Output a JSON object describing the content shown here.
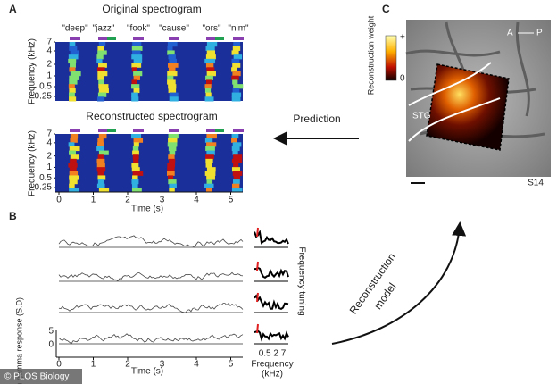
{
  "panel_a": {
    "label": "A",
    "original_title": "Original spectrogram",
    "reconstructed_title": "Reconstructed spectrogram",
    "words": [
      "\"deep\"",
      "\"jazz\"",
      "\"fook\"",
      "\"cause\"",
      "\"ors\"",
      "\"nim\""
    ],
    "y_axis_label": "Frequency (kHz)",
    "y_ticks": [
      "7",
      "4",
      "2",
      "1",
      "0.5",
      "0.25"
    ],
    "x_ticks": [
      "0",
      "1",
      "2",
      "3",
      "4",
      "5"
    ],
    "x_axis_label": "Time (s)"
  },
  "prediction": "Prediction",
  "panel_b": {
    "label": "B",
    "y_axis_label": "High gamma response (S.D)",
    "y_ticks": [
      "5",
      "0"
    ],
    "x_ticks": [
      "0",
      "1",
      "2",
      "3",
      "4",
      "5"
    ],
    "x_axis_label": "Time (s)",
    "tuning_label": "Frequency tuning",
    "tuning_ticks": "0.5 2 7",
    "tuning_axis_label": "Frequency",
    "tuning_axis_unit": "(kHz)"
  },
  "panel_c": {
    "label": "C",
    "colorbar_label": "Reconstruction weight",
    "colorbar_max": "+",
    "colorbar_min": "0",
    "orientation_left": "A",
    "orientation_right": "P",
    "region": "STG",
    "subject": "S14"
  },
  "model_label_1": "Reconstruction",
  "model_label_2": "model",
  "credit": "© PLOS Biology"
}
